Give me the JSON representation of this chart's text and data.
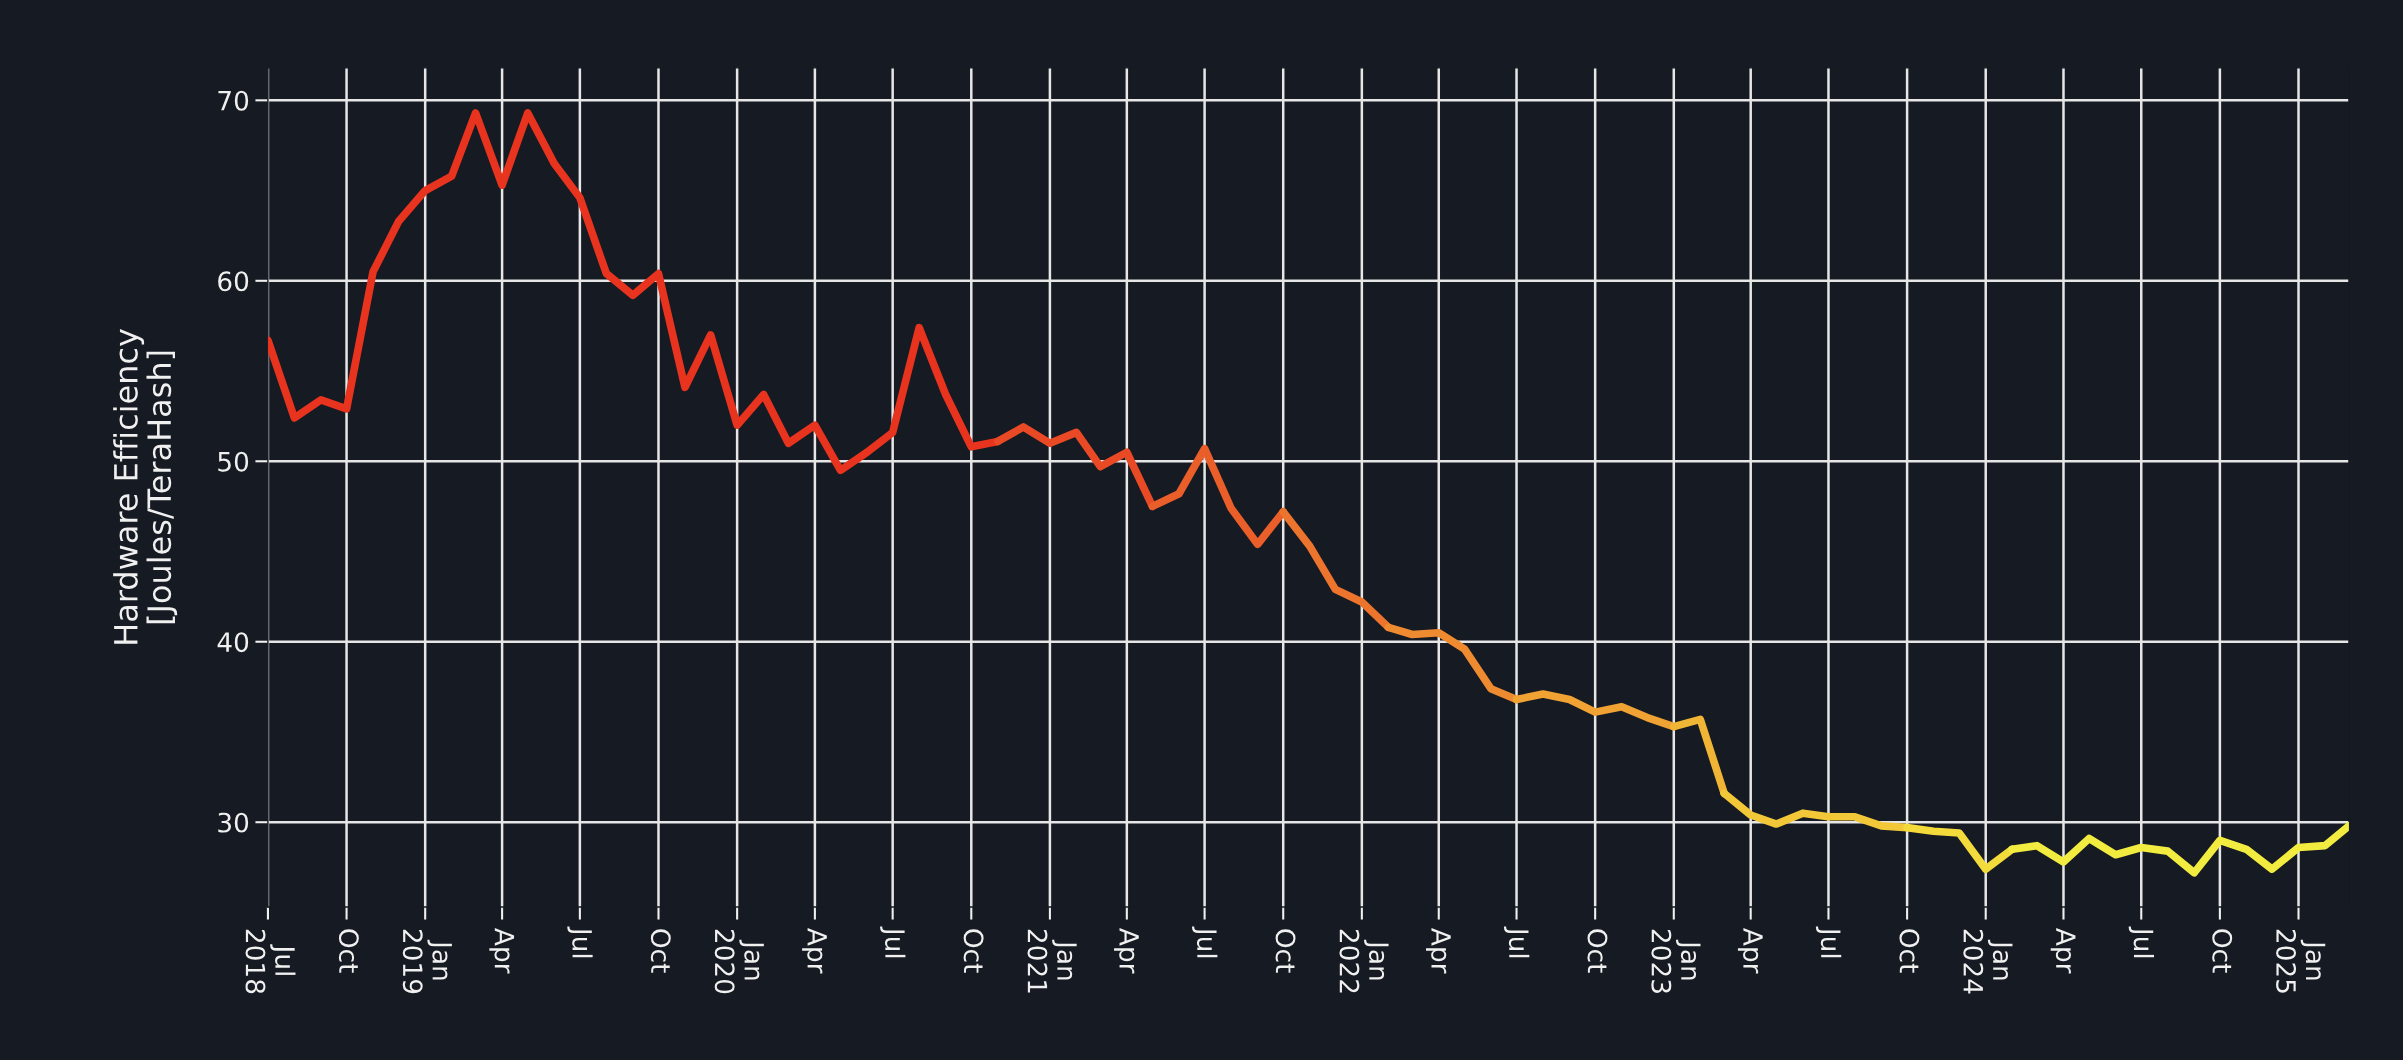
{
  "chart_data": {
    "type": "line",
    "ylabel": "Hardware Efficiency\n[Joules/TeraHash]",
    "series": [
      {
        "color": "#e8331f",
        "x": [
          "2018-07",
          "2018-08",
          "2018-09",
          "2018-10",
          "2018-11",
          "2018-12",
          "2019-01",
          "2019-02",
          "2019-03",
          "2019-04",
          "2019-05",
          "2019-06",
          "2019-07",
          "2019-08",
          "2019-09",
          "2019-10",
          "2019-11",
          "2019-12",
          "2020-01",
          "2020-02",
          "2020-03",
          "2020-04",
          "2020-05",
          "2020-06",
          "2020-07",
          "2020-08",
          "2020-09",
          "2020-10",
          "2020-11"
        ],
        "values": [
          56.7,
          52.4,
          53.4,
          52.9,
          60.5,
          63.3,
          65.0,
          65.8,
          69.3,
          65.3,
          69.3,
          66.5,
          64.6,
          60.4,
          59.2,
          60.4,
          54.1,
          57.0,
          52.0,
          53.7,
          51.0,
          52.0,
          49.5,
          50.5,
          51.6,
          57.4,
          53.7,
          50.8,
          51.1
        ]
      },
      {
        "color": "#e94a25",
        "x": [
          "2020-11",
          "2020-12",
          "2021-01",
          "2021-02",
          "2021-03",
          "2021-04",
          "2021-05"
        ],
        "values": [
          51.1,
          51.9,
          51.0,
          51.6,
          49.7,
          50.5,
          47.5
        ]
      },
      {
        "color": "#ea5e2a",
        "x": [
          "2021-05",
          "2021-06",
          "2021-07",
          "2021-08",
          "2021-09",
          "2021-10"
        ],
        "values": [
          47.5,
          48.2,
          50.7,
          47.4,
          45.4,
          47.2
        ]
      },
      {
        "color": "#ec742d",
        "x": [
          "2021-10",
          "2021-11",
          "2021-12",
          "2022-01",
          "2022-02"
        ],
        "values": [
          47.2,
          45.3,
          42.9,
          42.2,
          40.8
        ]
      },
      {
        "color": "#ee8a30",
        "x": [
          "2022-02",
          "2022-03",
          "2022-04",
          "2022-05",
          "2022-06",
          "2022-07"
        ],
        "values": [
          40.8,
          40.4,
          40.5,
          39.6,
          37.4,
          36.8
        ]
      },
      {
        "color": "#f0a233",
        "x": [
          "2022-07",
          "2022-08",
          "2022-09",
          "2022-10",
          "2022-11",
          "2022-12",
          "2023-01"
        ],
        "values": [
          36.8,
          37.1,
          36.8,
          36.1,
          36.4,
          35.8,
          35.3
        ]
      },
      {
        "color": "#f1b535",
        "x": [
          "2023-01",
          "2023-02",
          "2023-03"
        ],
        "values": [
          35.3,
          35.7,
          31.6
        ]
      },
      {
        "color": "#f2c838",
        "x": [
          "2023-03",
          "2023-04",
          "2023-05",
          "2023-06",
          "2023-07",
          "2023-08",
          "2023-09",
          "2023-10"
        ],
        "values": [
          31.6,
          30.4,
          29.9,
          30.5,
          30.3,
          30.3,
          29.8,
          29.7
        ]
      },
      {
        "color": "#f3db3b",
        "x": [
          "2023-10",
          "2023-11",
          "2023-12",
          "2024-01",
          "2024-02"
        ],
        "values": [
          29.7,
          29.5,
          29.4,
          27.4,
          28.5
        ]
      },
      {
        "color": "#f2ec40",
        "x": [
          "2024-02",
          "2024-03",
          "2024-04",
          "2024-05",
          "2024-06",
          "2024-07",
          "2024-08",
          "2024-09",
          "2024-10",
          "2024-11",
          "2024-12",
          "2025-01",
          "2025-02",
          "2025-03"
        ],
        "values": [
          28.5,
          28.7,
          27.8,
          29.1,
          28.2,
          28.6,
          28.4,
          27.2,
          29.0,
          28.5,
          27.4,
          28.6,
          28.7,
          29.8
        ]
      }
    ],
    "xlim": [
      "2018-07",
      "2025-03"
    ],
    "xticks": [
      {
        "value": "2018-07",
        "label": "Jul\n2018"
      },
      {
        "value": "2018-10",
        "label": "Oct"
      },
      {
        "value": "2019-01",
        "label": "Jan\n2019"
      },
      {
        "value": "2019-04",
        "label": "Apr"
      },
      {
        "value": "2019-07",
        "label": "Jul"
      },
      {
        "value": "2019-10",
        "label": "Oct"
      },
      {
        "value": "2020-01",
        "label": "Jan\n2020"
      },
      {
        "value": "2020-04",
        "label": "Apr"
      },
      {
        "value": "2020-07",
        "label": "Jul"
      },
      {
        "value": "2020-10",
        "label": "Oct"
      },
      {
        "value": "2021-01",
        "label": "Jan\n2021"
      },
      {
        "value": "2021-04",
        "label": "Apr"
      },
      {
        "value": "2021-07",
        "label": "Jul"
      },
      {
        "value": "2021-10",
        "label": "Oct"
      },
      {
        "value": "2022-01",
        "label": "Jan\n2022"
      },
      {
        "value": "2022-04",
        "label": "Apr"
      },
      {
        "value": "2022-07",
        "label": "Jul"
      },
      {
        "value": "2022-10",
        "label": "Oct"
      },
      {
        "value": "2023-01",
        "label": "Jan\n2023"
      },
      {
        "value": "2023-04",
        "label": "Apr"
      },
      {
        "value": "2023-07",
        "label": "Jul"
      },
      {
        "value": "2023-10",
        "label": "Oct"
      },
      {
        "value": "2024-01",
        "label": "Jan\n2024"
      },
      {
        "value": "2024-04",
        "label": "Apr"
      },
      {
        "value": "2024-07",
        "label": "Jul"
      },
      {
        "value": "2024-10",
        "label": "Oct"
      },
      {
        "value": "2025-01",
        "label": "Jan\n2025"
      }
    ],
    "ylim": [
      25.3,
      71.8
    ],
    "yticks": [
      30,
      40,
      50,
      60,
      70
    ],
    "grid": true,
    "marker": "none",
    "line_style": "solid"
  }
}
